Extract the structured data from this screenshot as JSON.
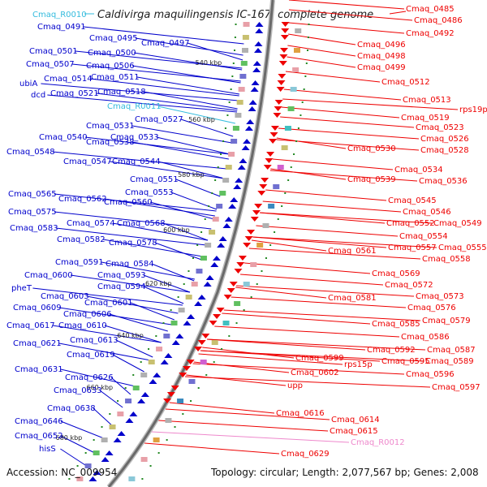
{
  "title": "Caldivirga maquilingensis IC-167, complete genome",
  "title_tag": "Cmaq_R0010",
  "footer": {
    "accession": "Accession: NC_009954",
    "topology": "Topology: circular; Length: 2,077,567 bp; Genes: 2,008"
  },
  "colors": {
    "forward": "#0000cc",
    "reverse": "#ee0000",
    "rna_forward": "#33bbdd",
    "rna_reverse": "#ee88cc",
    "backbone": "#777777",
    "tick": "#228822"
  },
  "kbp_marks": [
    "540 kbp",
    "560 kbp",
    "580 kbp",
    "600 kbp",
    "620 kbp",
    "640 kbp",
    "660 kbp",
    "680 kbp"
  ],
  "left_labels": [
    "Cmaq_0491",
    "Cmaq_0495",
    "Cmaq_0497",
    "Cmaq_0501",
    "Cmaq_0500",
    "Cmaq_0507",
    "Cmaq_0506",
    "Cmaq_0514",
    "Cmaq_0511",
    "ubiA",
    "Cmaq_0521",
    "Cmaq_0518",
    "dcd",
    "Cmaq_R0011",
    "Cmaq_0527",
    "Cmaq_0531",
    "Cmaq_0540",
    "Cmaq_0533",
    "Cmaq_0538",
    "Cmaq_0548",
    "Cmaq_0547",
    "Cmaq_0544",
    "Cmaq_0551",
    "Cmaq_0553",
    "Cmaq_0565",
    "Cmaq_0562",
    "Cmaq_0560",
    "Cmaq_0575",
    "Cmaq_0574",
    "Cmaq_0568",
    "Cmaq_0583",
    "Cmaq_0582",
    "Cmaq_0578",
    "Cmaq_0591",
    "Cmaq_0584",
    "Cmaq_0600",
    "Cmaq_0593",
    "Cmaq_0594",
    "pheT",
    "Cmaq_0603",
    "Cmaq_0601",
    "Cmaq_0609",
    "Cmaq_0606",
    "Cmaq_0617",
    "Cmaq_0610",
    "Cmaq_0613",
    "Cmaq_0621",
    "Cmaq_0619",
    "Cmaq_0631",
    "Cmaq_0626",
    "Cmaq_0633",
    "Cmaq_0638",
    "Cmaq_0646",
    "Cmaq_0652",
    "hisS"
  ],
  "right_labels": [
    "Cmaq_0485",
    "Cmaq_0486",
    "Cmaq_0492",
    "Cmaq_0496",
    "Cmaq_0498",
    "Cmaq_0499",
    "Cmaq_0512",
    "Cmaq_0513",
    "rps19p",
    "Cmaq_0519",
    "Cmaq_0523",
    "Cmaq_0526",
    "Cmaq_0530",
    "Cmaq_0528",
    "Cmaq_0534",
    "Cmaq_0539",
    "Cmaq_0536",
    "Cmaq_0545",
    "Cmaq_0546",
    "Cmaq_0552",
    "Cmaq_0549",
    "Cmaq_0554",
    "Cmaq_0557",
    "Cmaq_0555",
    "Cmaq_0561",
    "Cmaq_0558",
    "Cmaq_0569",
    "Cmaq_0572",
    "Cmaq_0581",
    "Cmaq_0573",
    "Cmaq_0576",
    "Cmaq_0579",
    "Cmaq_0585",
    "Cmaq_0586",
    "Cmaq_0592",
    "Cmaq_0587",
    "Cmaq_0599",
    "rps15p",
    "Cmaq_0595",
    "Cmaq_0589",
    "Cmaq_0602",
    "Cmaq_0596",
    "Cmaq_0597",
    "upp",
    "Cmaq_0616",
    "Cmaq_0614",
    "Cmaq_0615",
    "Cmaq_R0012",
    "Cmaq_0629"
  ]
}
